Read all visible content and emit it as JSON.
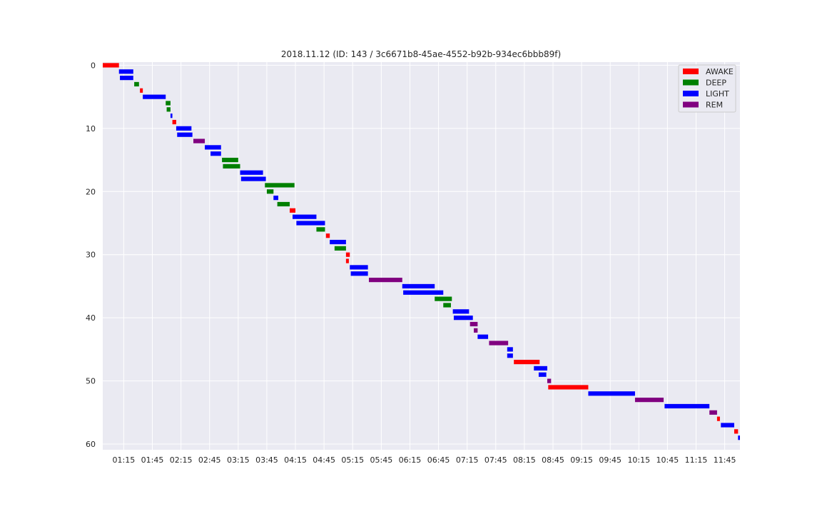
{
  "chart_data": {
    "type": "gantt",
    "title": "2018.11.12  (ID: 143 / 3c6671b8-45ae-4552-b92b-934ec6bbb89f)",
    "colors": {
      "AWAKE": "#ff0000",
      "DEEP": "#008000",
      "LIGHT": "#0000ff",
      "REM": "#800080"
    },
    "legend": {
      "placement": "top-right",
      "entries": [
        "AWAKE",
        "DEEP",
        "LIGHT",
        "REM"
      ]
    },
    "grid": true,
    "x_range": [
      "00:53",
      "12:01"
    ],
    "y_range": [
      -0.5,
      60.9
    ],
    "y_inverted": true,
    "x_ticks": [
      "01:15",
      "01:45",
      "02:15",
      "02:45",
      "03:15",
      "03:45",
      "04:15",
      "04:45",
      "05:15",
      "05:45",
      "06:15",
      "06:45",
      "07:15",
      "07:45",
      "08:15",
      "08:45",
      "09:15",
      "09:45",
      "10:15",
      "10:45",
      "11:15",
      "11:45"
    ],
    "y_ticks": [
      "0",
      "10",
      "20",
      "30",
      "40",
      "50",
      "60"
    ],
    "segments": [
      {
        "i": 0,
        "stage": "AWAKE",
        "start": "00:53",
        "end": "01:10"
      },
      {
        "i": 1,
        "stage": "LIGHT",
        "start": "01:10",
        "end": "01:25"
      },
      {
        "i": 2,
        "stage": "LIGHT",
        "start": "01:11",
        "end": "01:25"
      },
      {
        "i": 3,
        "stage": "DEEP",
        "start": "01:26",
        "end": "01:31"
      },
      {
        "i": 4,
        "stage": "AWAKE",
        "start": "01:32",
        "end": "01:35"
      },
      {
        "i": 5,
        "stage": "LIGHT",
        "start": "01:35",
        "end": "01:59"
      },
      {
        "i": 6,
        "stage": "DEEP",
        "start": "01:59",
        "end": "02:04"
      },
      {
        "i": 7,
        "stage": "DEEP",
        "start": "02:00",
        "end": "02:04"
      },
      {
        "i": 8,
        "stage": "LIGHT",
        "start": "02:04",
        "end": "02:06"
      },
      {
        "i": 9,
        "stage": "AWAKE",
        "start": "02:06",
        "end": "02:10"
      },
      {
        "i": 10,
        "stage": "LIGHT",
        "start": "02:10",
        "end": "02:26"
      },
      {
        "i": 11,
        "stage": "LIGHT",
        "start": "02:11",
        "end": "02:27"
      },
      {
        "i": 12,
        "stage": "REM",
        "start": "02:28",
        "end": "02:40"
      },
      {
        "i": 13,
        "stage": "LIGHT",
        "start": "02:40",
        "end": "02:57"
      },
      {
        "i": 14,
        "stage": "LIGHT",
        "start": "02:46",
        "end": "02:57"
      },
      {
        "i": 15,
        "stage": "DEEP",
        "start": "02:58",
        "end": "03:15"
      },
      {
        "i": 16,
        "stage": "DEEP",
        "start": "02:59",
        "end": "03:17"
      },
      {
        "i": 17,
        "stage": "LIGHT",
        "start": "03:17",
        "end": "03:41"
      },
      {
        "i": 18,
        "stage": "LIGHT",
        "start": "03:18",
        "end": "03:44"
      },
      {
        "i": 19,
        "stage": "DEEP",
        "start": "03:43",
        "end": "04:14"
      },
      {
        "i": 20,
        "stage": "DEEP",
        "start": "03:45",
        "end": "03:52"
      },
      {
        "i": 21,
        "stage": "LIGHT",
        "start": "03:52",
        "end": "03:57"
      },
      {
        "i": 22,
        "stage": "DEEP",
        "start": "03:56",
        "end": "04:09"
      },
      {
        "i": 23,
        "stage": "AWAKE",
        "start": "04:09",
        "end": "04:15"
      },
      {
        "i": 24,
        "stage": "LIGHT",
        "start": "04:12",
        "end": "04:37"
      },
      {
        "i": 25,
        "stage": "LIGHT",
        "start": "04:16",
        "end": "04:46"
      },
      {
        "i": 26,
        "stage": "DEEP",
        "start": "04:37",
        "end": "04:46"
      },
      {
        "i": 27,
        "stage": "AWAKE",
        "start": "04:47",
        "end": "04:51"
      },
      {
        "i": 28,
        "stage": "LIGHT",
        "start": "04:51",
        "end": "05:08"
      },
      {
        "i": 29,
        "stage": "DEEP",
        "start": "04:56",
        "end": "05:08"
      },
      {
        "i": 30,
        "stage": "AWAKE",
        "start": "05:08",
        "end": "05:12"
      },
      {
        "i": 31,
        "stage": "AWAKE",
        "start": "05:08",
        "end": "05:11"
      },
      {
        "i": 32,
        "stage": "LIGHT",
        "start": "05:12",
        "end": "05:31"
      },
      {
        "i": 33,
        "stage": "LIGHT",
        "start": "05:13",
        "end": "05:31"
      },
      {
        "i": 34,
        "stage": "REM",
        "start": "05:32",
        "end": "06:07"
      },
      {
        "i": 35,
        "stage": "LIGHT",
        "start": "06:07",
        "end": "06:41"
      },
      {
        "i": 36,
        "stage": "LIGHT",
        "start": "06:08",
        "end": "06:50"
      },
      {
        "i": 37,
        "stage": "DEEP",
        "start": "06:41",
        "end": "06:59"
      },
      {
        "i": 38,
        "stage": "DEEP",
        "start": "06:50",
        "end": "06:58"
      },
      {
        "i": 39,
        "stage": "LIGHT",
        "start": "07:00",
        "end": "07:17"
      },
      {
        "i": 40,
        "stage": "LIGHT",
        "start": "07:01",
        "end": "07:21"
      },
      {
        "i": 41,
        "stage": "REM",
        "start": "07:18",
        "end": "07:26"
      },
      {
        "i": 42,
        "stage": "REM",
        "start": "07:22",
        "end": "07:26"
      },
      {
        "i": 43,
        "stage": "LIGHT",
        "start": "07:26",
        "end": "07:37"
      },
      {
        "i": 44,
        "stage": "REM",
        "start": "07:38",
        "end": "07:58"
      },
      {
        "i": 45,
        "stage": "LIGHT",
        "start": "07:57",
        "end": "08:03"
      },
      {
        "i": 46,
        "stage": "LIGHT",
        "start": "07:57",
        "end": "08:03"
      },
      {
        "i": 47,
        "stage": "AWAKE",
        "start": "08:04",
        "end": "08:31"
      },
      {
        "i": 48,
        "stage": "LIGHT",
        "start": "08:25",
        "end": "08:39"
      },
      {
        "i": 49,
        "stage": "LIGHT",
        "start": "08:30",
        "end": "08:38"
      },
      {
        "i": 50,
        "stage": "REM",
        "start": "08:39",
        "end": "08:43"
      },
      {
        "i": 51,
        "stage": "AWAKE",
        "start": "08:40",
        "end": "09:22"
      },
      {
        "i": 52,
        "stage": "LIGHT",
        "start": "09:22",
        "end": "10:11"
      },
      {
        "i": 53,
        "stage": "REM",
        "start": "10:11",
        "end": "10:41"
      },
      {
        "i": 54,
        "stage": "LIGHT",
        "start": "10:42",
        "end": "11:29"
      },
      {
        "i": 55,
        "stage": "REM",
        "start": "11:29",
        "end": "11:37"
      },
      {
        "i": 56,
        "stage": "AWAKE",
        "start": "11:37",
        "end": "11:40"
      },
      {
        "i": 57,
        "stage": "LIGHT",
        "start": "11:41",
        "end": "11:55"
      },
      {
        "i": 58,
        "stage": "AWAKE",
        "start": "11:55",
        "end": "11:59"
      },
      {
        "i": 59,
        "stage": "LIGHT",
        "start": "11:59",
        "end": "12:09"
      }
    ]
  }
}
